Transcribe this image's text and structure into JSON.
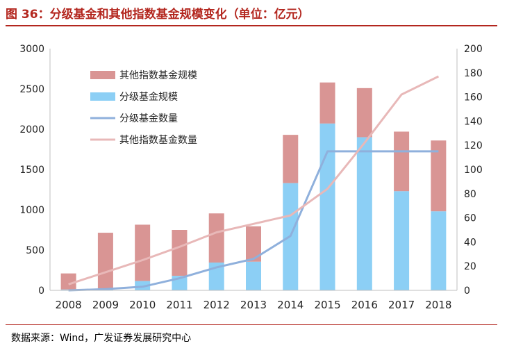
{
  "title": "图 36：分级基金和其他指数基金规模变化（单位：亿元）",
  "source": "数据来源：Wind，广发证券发展研究中心",
  "colors": {
    "other_scale": "#d99594",
    "graded_scale": "#8ccff5",
    "graded_count": "#8fb0dc",
    "other_count": "#e8b8b8",
    "title": "#b3261e"
  },
  "chart_data": {
    "type": "bar",
    "stacked": true,
    "categories": [
      "2008",
      "2009",
      "2010",
      "2011",
      "2012",
      "2013",
      "2014",
      "2015",
      "2016",
      "2017",
      "2018"
    ],
    "series": [
      {
        "name": "其他指数基金规模",
        "kind": "bar",
        "axis": "left",
        "values": [
          200,
          690,
          700,
          570,
          610,
          440,
          600,
          510,
          610,
          740,
          880
        ]
      },
      {
        "name": "分级基金规模",
        "kind": "bar",
        "axis": "left",
        "values": [
          10,
          25,
          115,
          180,
          345,
          355,
          1330,
          2070,
          1900,
          1230,
          980
        ]
      },
      {
        "name": "分级基金数量",
        "kind": "line",
        "axis": "right",
        "values": [
          0,
          1,
          3,
          10,
          19,
          26,
          45,
          115,
          115,
          115,
          115
        ]
      },
      {
        "name": "其他指数基金数量",
        "kind": "line",
        "axis": "right",
        "values": [
          5,
          15,
          25,
          36,
          48,
          55,
          62,
          84,
          122,
          162,
          177
        ]
      }
    ],
    "left_axis": {
      "ylim": [
        0,
        3000
      ],
      "ticks": [
        "0",
        "500",
        "1000",
        "1500",
        "2000",
        "2500",
        "3000"
      ]
    },
    "right_axis": {
      "ylim": [
        0,
        200
      ],
      "ticks": [
        "0",
        "20",
        "40",
        "60",
        "80",
        "100",
        "120",
        "140",
        "160",
        "180",
        "200"
      ]
    },
    "legend_position": "top-left",
    "grid": false
  }
}
